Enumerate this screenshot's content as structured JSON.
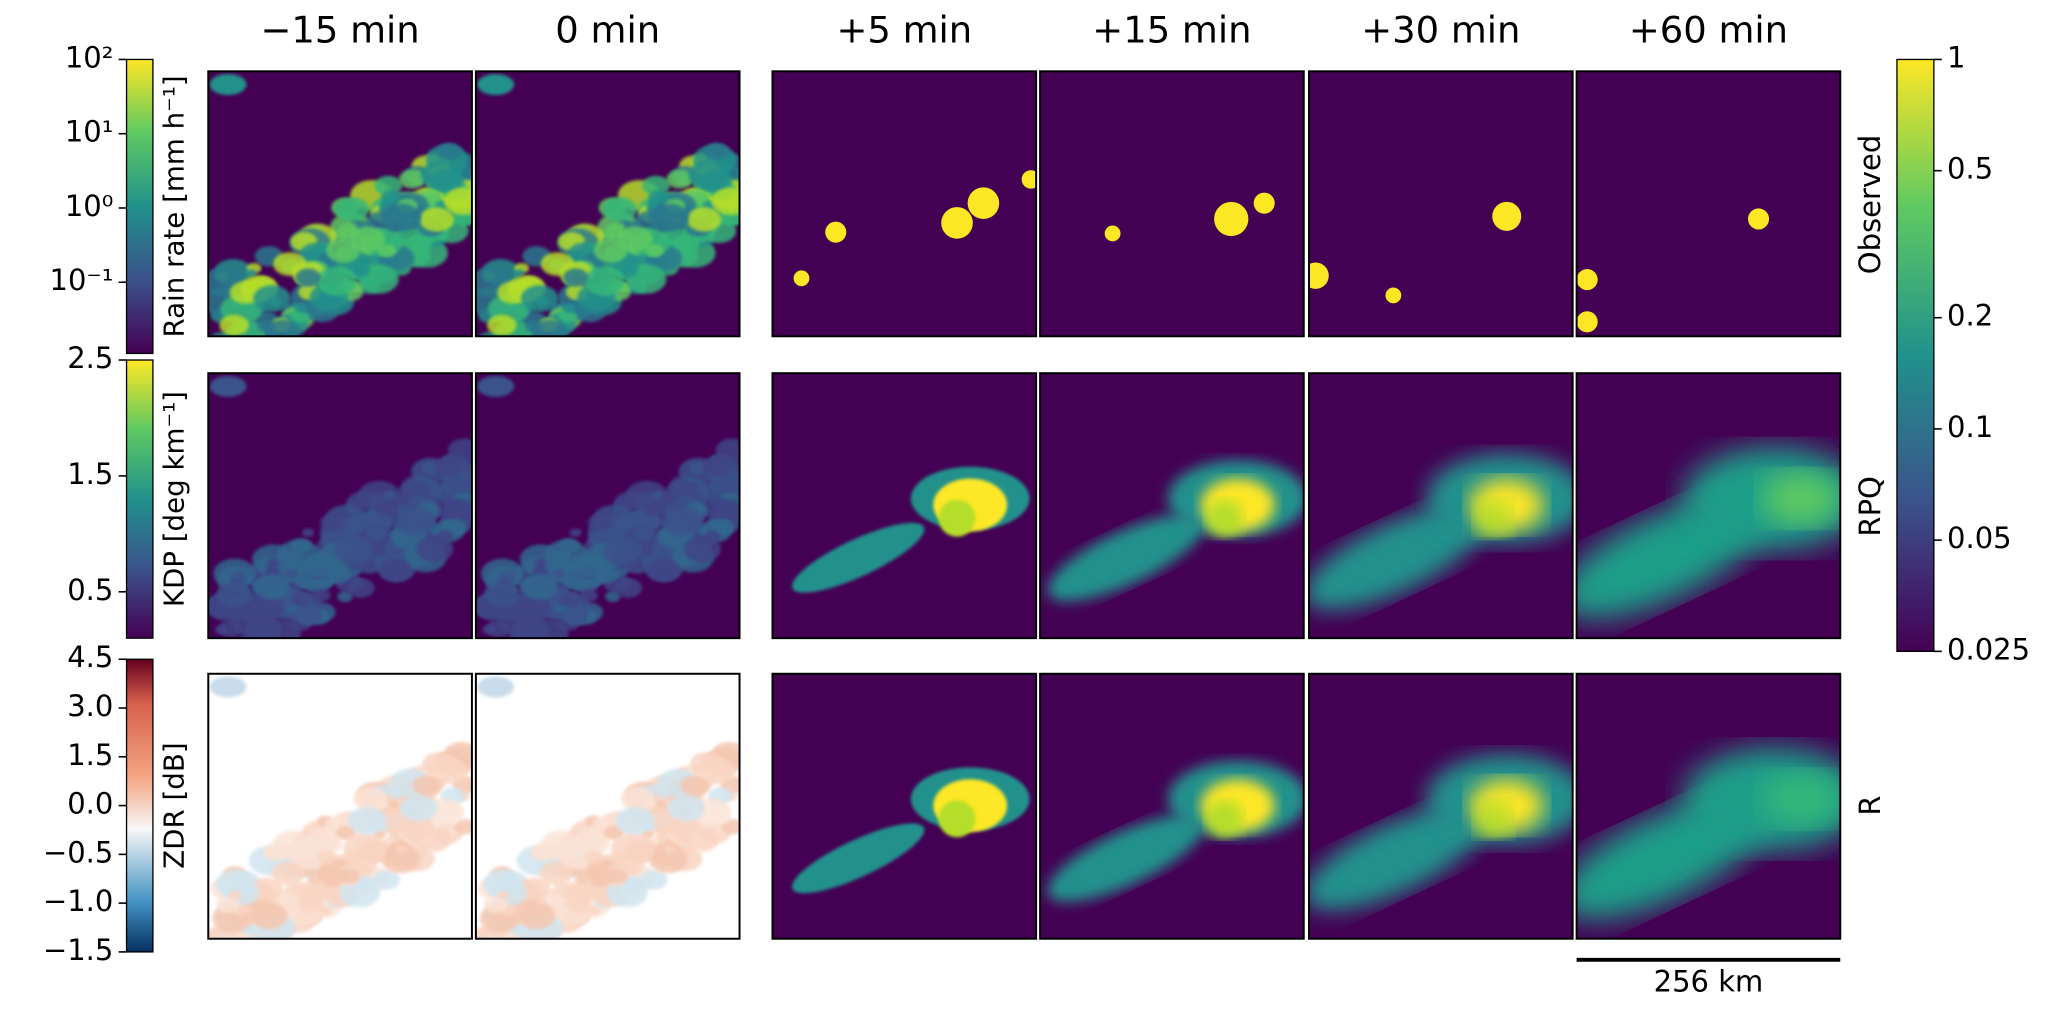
{
  "figure": {
    "columns": [
      "−15 min",
      "0 min",
      "+5 min",
      "+15 min",
      "+30 min",
      "+60 min"
    ],
    "rows": [
      "Observed",
      "RPQ",
      "R"
    ],
    "colorbars": [
      {
        "label": "Rain rate [mm h⁻¹]",
        "scale": "log",
        "colormap": "viridis",
        "lim": [
          0.011,
          100
        ],
        "ticks": [
          {
            "value": 100,
            "label": "10²"
          },
          {
            "value": 10,
            "label": "10¹"
          },
          {
            "value": 1,
            "label": "10⁰"
          },
          {
            "value": 0.1,
            "label": "10⁻¹"
          }
        ]
      },
      {
        "label": "KDP [deg km⁻¹]",
        "scale": "linear",
        "colormap": "viridis",
        "lim": [
          0.1,
          2.5
        ],
        "ticks": [
          2.5,
          1.5,
          0.5
        ]
      },
      {
        "label": "ZDR [dB]",
        "scale": "piecewise",
        "colormap": "RdBu_r",
        "lim": [
          -1.5,
          4.5
        ],
        "ticks": [
          4.5,
          {
            "value": 3,
            "label": "3.0"
          },
          1.5,
          {
            "value": 0,
            "label": "0.0"
          },
          {
            "value": -0.5,
            "label": "−0.5"
          },
          {
            "value": -1,
            "label": "−1.0"
          },
          {
            "value": -1.5,
            "label": "−1.5"
          }
        ]
      },
      {
        "scale": "log",
        "colormap": "viridis",
        "lim": [
          0.025,
          1
        ],
        "ticks": [
          1,
          0.5,
          0.2,
          0.1,
          0.05,
          0.025
        ]
      }
    ],
    "scale_bar": "256 km"
  }
}
